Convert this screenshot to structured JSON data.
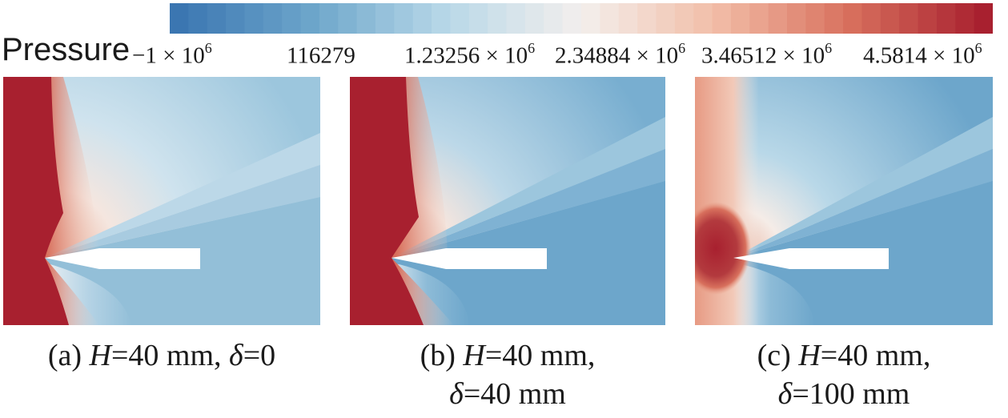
{
  "colorbar": {
    "title": "Pressure",
    "colors": [
      "#3b76b1",
      "#6da6cb",
      "#b9d8e8",
      "#f3efed",
      "#f2bda7",
      "#d8705d",
      "#a8202f"
    ],
    "ticks": [
      {
        "mantissa": "−1 × 10",
        "exp": "6"
      },
      {
        "mantissa": "116279",
        "exp": ""
      },
      {
        "mantissa": "1.23256 × 10",
        "exp": "6"
      },
      {
        "mantissa": "2.34884 × 10",
        "exp": "6"
      },
      {
        "mantissa": "3.46512 × 10",
        "exp": "6"
      },
      {
        "mantissa": "4.5814 × 10",
        "exp": "6"
      }
    ]
  },
  "panels": [
    {
      "label": "(a)",
      "var1": "H",
      "eq1": "=40 mm,",
      "var2": "δ",
      "eq2": "=0",
      "line_break": false
    },
    {
      "label": "(b)",
      "var1": "H",
      "eq1": "=40 mm,",
      "var2": "δ",
      "eq2": "=40 mm",
      "line_break": true
    },
    {
      "label": "(c)",
      "var1": "H",
      "eq1": "=40 mm,",
      "var2": "δ",
      "eq2": "=100 mm",
      "line_break": true
    }
  ]
}
